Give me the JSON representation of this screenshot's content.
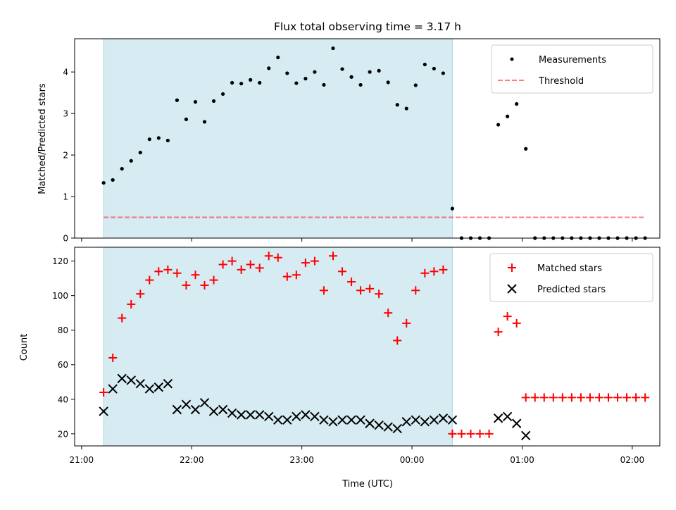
{
  "figure": {
    "title": "Flux total observing time = 3.17 h",
    "xlabel": "Time (UTC)"
  },
  "colors": {
    "shade": "#add8e6",
    "measurement": "#000000",
    "threshold": "#ff0000",
    "matched": "#ff0000",
    "predicted": "#000000"
  },
  "chart_data": [
    {
      "type": "scatter",
      "panel": "top",
      "ylabel": "Matched/Predicted stars",
      "xlim": [
        "21:00",
        "02:15"
      ],
      "ylim": [
        0,
        4.8
      ],
      "yticks": [
        0,
        1,
        2,
        3,
        4
      ],
      "grid": false,
      "legend_position": "upper right",
      "shaded_span": {
        "from": "21:12",
        "to": "00:22"
      },
      "threshold": {
        "name": "Threshold",
        "value": 0.5,
        "style": "dashed"
      },
      "series": [
        {
          "name": "Measurements",
          "marker": "dot",
          "x": [
            "21:12",
            "21:17",
            "21:22",
            "21:27",
            "21:32",
            "21:37",
            "21:42",
            "21:47",
            "21:52",
            "21:57",
            "22:02",
            "22:07",
            "22:12",
            "22:17",
            "22:22",
            "22:27",
            "22:32",
            "22:37",
            "22:42",
            "22:47",
            "22:52",
            "22:57",
            "23:02",
            "23:07",
            "23:12",
            "23:17",
            "23:22",
            "23:27",
            "23:32",
            "23:37",
            "23:42",
            "23:47",
            "23:52",
            "23:57",
            "00:02",
            "00:07",
            "00:12",
            "00:17",
            "00:22",
            "00:27",
            "00:32",
            "00:37",
            "00:42",
            "00:47",
            "00:52",
            "00:57",
            "01:02",
            "01:07",
            "01:12",
            "01:17",
            "01:22",
            "01:27",
            "01:32",
            "01:37",
            "01:42",
            "01:47",
            "01:52",
            "01:57",
            "02:02",
            "02:07"
          ],
          "y": [
            1.33,
            1.4,
            1.67,
            1.86,
            2.06,
            2.38,
            2.41,
            2.35,
            3.32,
            2.86,
            3.28,
            2.8,
            3.3,
            3.47,
            3.74,
            3.72,
            3.81,
            3.74,
            4.09,
            4.35,
            3.97,
            3.73,
            3.84,
            4.0,
            3.69,
            4.57,
            4.07,
            3.88,
            3.69,
            4.0,
            4.03,
            3.75,
            3.21,
            3.12,
            3.68,
            4.18,
            4.08,
            3.97,
            0.71,
            0,
            0,
            0,
            0,
            2.73,
            2.93,
            3.23,
            2.15,
            0,
            0,
            0,
            0,
            0,
            0,
            0,
            0,
            0,
            0,
            0,
            0,
            0
          ]
        }
      ]
    },
    {
      "type": "scatter",
      "panel": "bottom",
      "ylabel": "Count",
      "xlim": [
        "21:00",
        "02:15"
      ],
      "ylim": [
        13,
        128
      ],
      "yticks": [
        20,
        40,
        60,
        80,
        100,
        120
      ],
      "xticks": [
        "21:00",
        "22:00",
        "23:00",
        "00:00",
        "01:00",
        "02:00"
      ],
      "grid": false,
      "legend_position": "upper right",
      "shaded_span": {
        "from": "21:12",
        "to": "00:22"
      },
      "series": [
        {
          "name": "Matched stars",
          "marker": "plus",
          "x": [
            "21:12",
            "21:17",
            "21:22",
            "21:27",
            "21:32",
            "21:37",
            "21:42",
            "21:47",
            "21:52",
            "21:57",
            "22:02",
            "22:07",
            "22:12",
            "22:17",
            "22:22",
            "22:27",
            "22:32",
            "22:37",
            "22:42",
            "22:47",
            "22:52",
            "22:57",
            "23:02",
            "23:07",
            "23:12",
            "23:17",
            "23:22",
            "23:27",
            "23:32",
            "23:37",
            "23:42",
            "23:47",
            "23:52",
            "23:57",
            "00:02",
            "00:07",
            "00:12",
            "00:17",
            "00:22",
            "00:27",
            "00:32",
            "00:37",
            "00:42",
            "00:47",
            "00:52",
            "00:57",
            "01:02",
            "01:07",
            "01:12",
            "01:17",
            "01:22",
            "01:27",
            "01:32",
            "01:37",
            "01:42",
            "01:47",
            "01:52",
            "01:57",
            "02:02",
            "02:07"
          ],
          "y": [
            44,
            64,
            87,
            95,
            101,
            109,
            114,
            115,
            113,
            106,
            112,
            106,
            109,
            118,
            120,
            115,
            118,
            116,
            123,
            122,
            111,
            112,
            119,
            120,
            103,
            123,
            114,
            108,
            103,
            104,
            101,
            90,
            74,
            84,
            103,
            113,
            114,
            115,
            20,
            20,
            20,
            20,
            20,
            79,
            88,
            84,
            41,
            41,
            41,
            41,
            41,
            41,
            41,
            41,
            41,
            41,
            41,
            41,
            41,
            41
          ]
        },
        {
          "name": "Predicted stars",
          "marker": "x",
          "x": [
            "21:12",
            "21:17",
            "21:22",
            "21:27",
            "21:32",
            "21:37",
            "21:42",
            "21:47",
            "21:52",
            "21:57",
            "22:02",
            "22:07",
            "22:12",
            "22:17",
            "22:22",
            "22:27",
            "22:32",
            "22:37",
            "22:42",
            "22:47",
            "22:52",
            "22:57",
            "23:02",
            "23:07",
            "23:12",
            "23:17",
            "23:22",
            "23:27",
            "23:32",
            "23:37",
            "23:42",
            "23:47",
            "23:52",
            "23:57",
            "00:02",
            "00:07",
            "00:12",
            "00:17",
            "00:22",
            "00:47",
            "00:52",
            "00:57",
            "01:02"
          ],
          "y": [
            33,
            46,
            52,
            51,
            49,
            46,
            47,
            49,
            34,
            37,
            34,
            38,
            33,
            34,
            32,
            31,
            31,
            31,
            30,
            28,
            28,
            30,
            31,
            30,
            28,
            27,
            28,
            28,
            28,
            26,
            25,
            24,
            23,
            27,
            28,
            27,
            28,
            29,
            28,
            29,
            30,
            26,
            19
          ]
        }
      ]
    }
  ]
}
